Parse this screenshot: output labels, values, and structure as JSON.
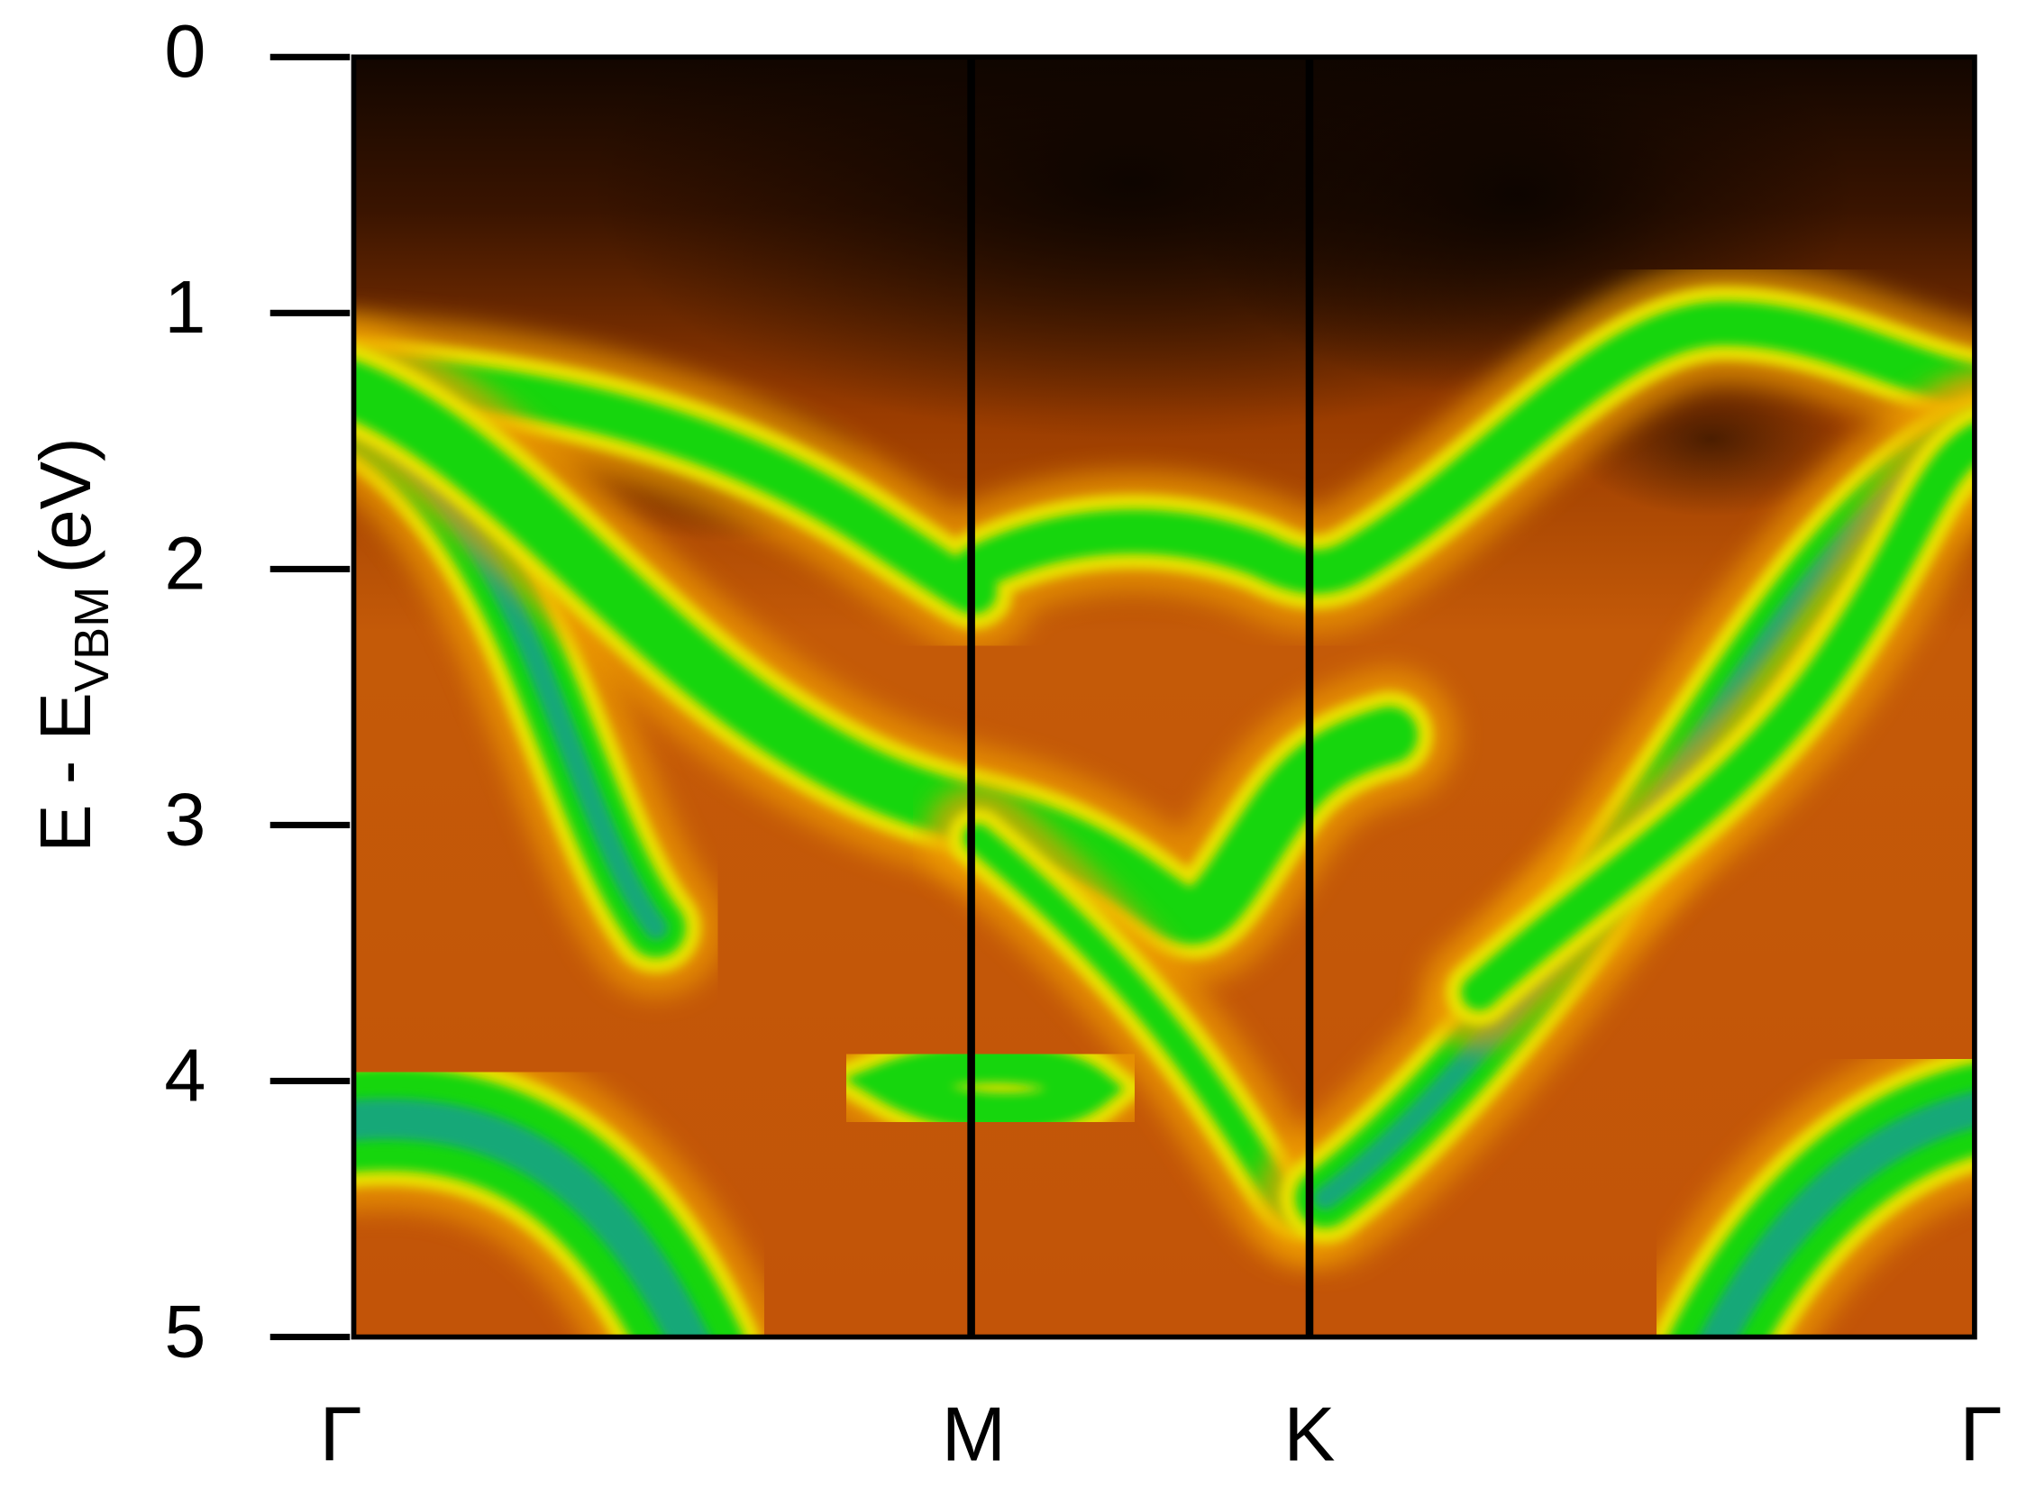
{
  "chart_data": {
    "type": "band_map",
    "ylabel": {
      "main": "E - E",
      "sub": "VBM",
      "unit": "(eV)"
    },
    "ylim": [
      0,
      5
    ],
    "y_inverted": true,
    "yticks": [
      0,
      1,
      2,
      3,
      4,
      5
    ],
    "categories": [
      "Γ",
      "M",
      "K",
      "Γ"
    ]
  }
}
